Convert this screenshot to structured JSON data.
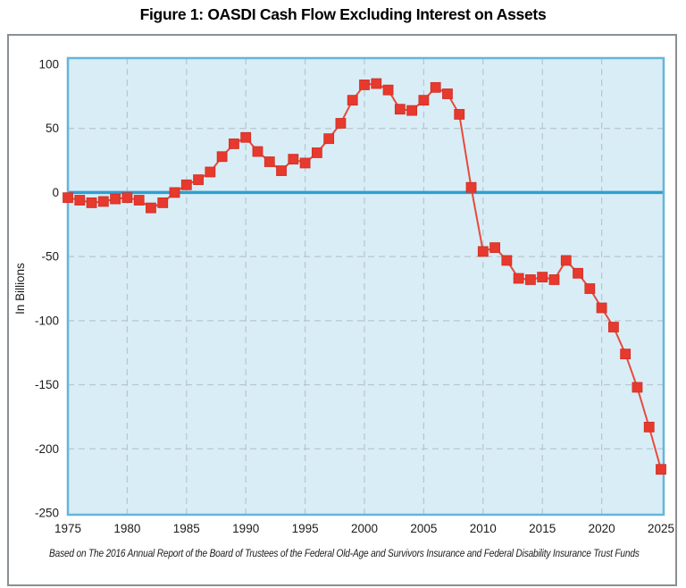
{
  "title": "Figure 1: OASDI Cash Flow Excluding Interest on Assets",
  "caption": "Based on The 2016 Annual Report of the Board of Trustees of the Federal Old-Age and Survivors Insurance and Federal Disability Insurance Trust Funds",
  "chart_data": {
    "type": "line",
    "title": "Figure 1: OASDI Cash Flow Excluding Interest on Assets",
    "series_name": "OASDI cash flow excluding interest on assets",
    "xlabel": "",
    "ylabel": "In Billions",
    "x": [
      1975,
      1976,
      1977,
      1978,
      1979,
      1980,
      1981,
      1982,
      1983,
      1984,
      1985,
      1986,
      1987,
      1988,
      1989,
      1990,
      1991,
      1992,
      1993,
      1994,
      1995,
      1996,
      1997,
      1998,
      1999,
      2000,
      2001,
      2002,
      2003,
      2004,
      2005,
      2006,
      2007,
      2008,
      2009,
      2010,
      2011,
      2012,
      2013,
      2014,
      2015,
      2016,
      2017,
      2018,
      2019,
      2020,
      2021,
      2022,
      2023,
      2024,
      2025
    ],
    "values": [
      -4,
      -6,
      -8,
      -7,
      -5,
      -4,
      -6,
      -12,
      -8,
      0,
      6,
      10,
      16,
      28,
      38,
      43,
      32,
      24,
      17,
      26,
      23,
      31,
      42,
      54,
      72,
      84,
      85,
      80,
      65,
      64,
      72,
      82,
      77,
      61,
      4,
      -46,
      -43,
      -53,
      -67,
      -68,
      -66,
      -68,
      -53,
      -63,
      -75,
      -90,
      -105,
      -126,
      -152,
      -183,
      -216
    ],
    "x_ticks": [
      "1975",
      "1980",
      "1985",
      "1990",
      "1995",
      "2000",
      "2005",
      "2010",
      "2015",
      "2020",
      "2025"
    ],
    "y_ticks": [
      "100",
      "50",
      "0",
      "-50",
      "-100",
      "-150",
      "-200",
      "-250"
    ],
    "y_tick_values": [
      100,
      50,
      0,
      -50,
      -100,
      -150,
      -200,
      -250
    ],
    "xlim": [
      1975,
      2025
    ],
    "ylim": [
      -250,
      100
    ],
    "grid": "dashed",
    "grid_x": [
      1980,
      1985,
      1990,
      1995,
      2000,
      2005,
      2010,
      2015,
      2020
    ],
    "grid_y": [
      50,
      -50,
      -100,
      -150,
      -200
    ],
    "zero_line": 0,
    "marker": "square",
    "legend": "none",
    "colors": {
      "series": "#e7392d",
      "series_line": "#e74a3c",
      "marker_edge": "#cd2f24",
      "zero_line": "#2f9fd0",
      "plot_bg": "#d9edf7",
      "plot_border": "#66b5da",
      "grid": "#b5c6cd",
      "text": "#1b1b1b",
      "frame": "#8a8f93"
    }
  }
}
